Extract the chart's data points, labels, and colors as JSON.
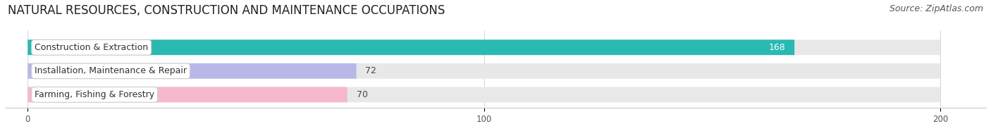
{
  "title": "NATURAL RESOURCES, CONSTRUCTION AND MAINTENANCE OCCUPATIONS",
  "source": "Source: ZipAtlas.com",
  "categories": [
    "Construction & Extraction",
    "Installation, Maintenance & Repair",
    "Farming, Fishing & Forestry"
  ],
  "values": [
    168,
    72,
    70
  ],
  "bar_colors": [
    "#2ab8b2",
    "#b8b8e8",
    "#f5b8cc"
  ],
  "bar_bg_color": "#e8e8e8",
  "xlim": [
    -5,
    210
  ],
  "xticks": [
    0,
    100,
    200
  ],
  "title_fontsize": 12,
  "source_fontsize": 9,
  "label_fontsize": 9,
  "value_fontsize": 9,
  "background_color": "#ffffff",
  "value_colors": [
    "#ffffff",
    "#555555",
    "#555555"
  ]
}
